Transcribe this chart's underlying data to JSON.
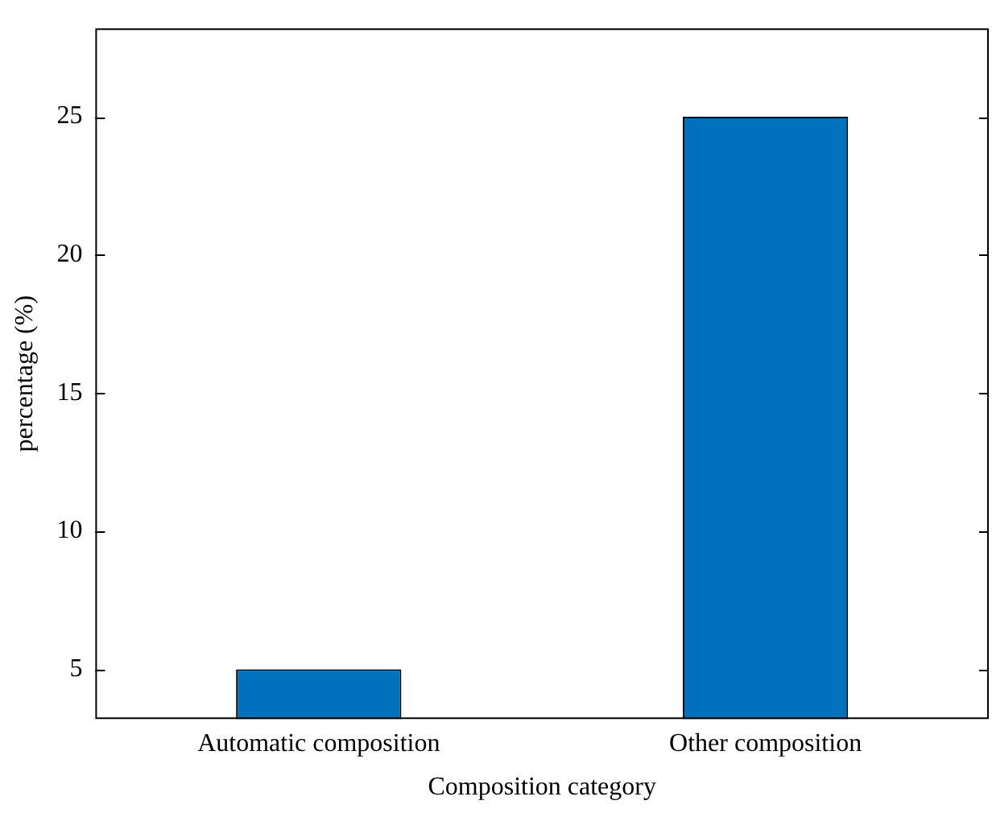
{
  "chart_data": {
    "type": "bar",
    "categories": [
      "Automatic composition",
      "Other composition"
    ],
    "values": [
      5,
      25
    ],
    "color": "#0072bd",
    "xlabel": "Composition category",
    "ylabel": "percentage (%)",
    "ylim": [
      3.2,
      28.2
    ],
    "yticks": [
      5,
      10,
      15,
      20,
      25
    ],
    "grid": false,
    "legend": false
  }
}
